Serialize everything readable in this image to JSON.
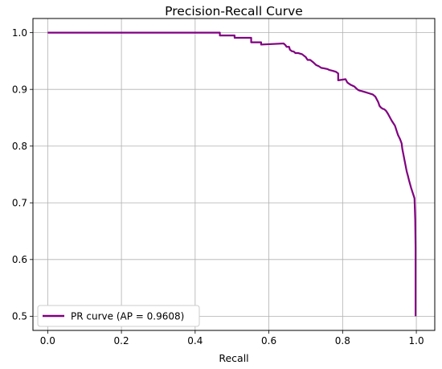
{
  "chart_data": {
    "type": "line",
    "title": "Precision-Recall Curve",
    "xlabel": "Recall",
    "ylabel": "",
    "xlim": [
      -0.04,
      1.05
    ],
    "ylim": [
      0.475,
      1.025
    ],
    "xticks": [
      0.0,
      0.2,
      0.4,
      0.6,
      0.8,
      1.0
    ],
    "xtick_labels": [
      "0.0",
      "0.2",
      "0.4",
      "0.6",
      "0.8",
      "1.0"
    ],
    "yticks": [
      0.5,
      0.6,
      0.7,
      0.8,
      0.9,
      1.0
    ],
    "ytick_labels": [
      "0.5",
      "0.6",
      "0.7",
      "0.8",
      "0.9",
      "1.0"
    ],
    "grid": true,
    "legend_position": "lower-left",
    "series": [
      {
        "name": "PR curve (AP = 0.9608)",
        "color": "#800080",
        "x": [
          0.0,
          0.467,
          0.467,
          0.507,
          0.507,
          0.552,
          0.552,
          0.579,
          0.579,
          0.64,
          0.645,
          0.648,
          0.655,
          0.657,
          0.663,
          0.667,
          0.672,
          0.68,
          0.69,
          0.7,
          0.705,
          0.712,
          0.72,
          0.728,
          0.735,
          0.742,
          0.75,
          0.758,
          0.765,
          0.772,
          0.782,
          0.788,
          0.788,
          0.808,
          0.813,
          0.822,
          0.832,
          0.84,
          0.845,
          0.852,
          0.862,
          0.872,
          0.882,
          0.889,
          0.893,
          0.897,
          0.9,
          0.904,
          0.908,
          0.913,
          0.918,
          0.923,
          0.928,
          0.933,
          0.938,
          0.942,
          0.946,
          0.95,
          0.953,
          0.956,
          0.96,
          0.962,
          0.965,
          0.968,
          0.971,
          0.974,
          0.977,
          0.98,
          0.983,
          0.986,
          0.989,
          0.992,
          0.995,
          0.996,
          0.997,
          0.998,
          0.998
        ],
        "y": [
          1.0,
          1.0,
          0.995,
          0.995,
          0.991,
          0.991,
          0.983,
          0.983,
          0.979,
          0.981,
          0.978,
          0.975,
          0.975,
          0.97,
          0.967,
          0.967,
          0.964,
          0.964,
          0.962,
          0.957,
          0.952,
          0.952,
          0.948,
          0.943,
          0.941,
          0.938,
          0.937,
          0.936,
          0.934,
          0.933,
          0.931,
          0.928,
          0.916,
          0.918,
          0.912,
          0.908,
          0.905,
          0.9,
          0.898,
          0.897,
          0.895,
          0.893,
          0.891,
          0.887,
          0.882,
          0.877,
          0.871,
          0.868,
          0.866,
          0.865,
          0.862,
          0.857,
          0.851,
          0.845,
          0.84,
          0.836,
          0.828,
          0.82,
          0.816,
          0.812,
          0.805,
          0.795,
          0.785,
          0.775,
          0.765,
          0.755,
          0.748,
          0.74,
          0.733,
          0.726,
          0.72,
          0.714,
          0.708,
          0.69,
          0.67,
          0.62,
          0.5
        ]
      }
    ]
  }
}
